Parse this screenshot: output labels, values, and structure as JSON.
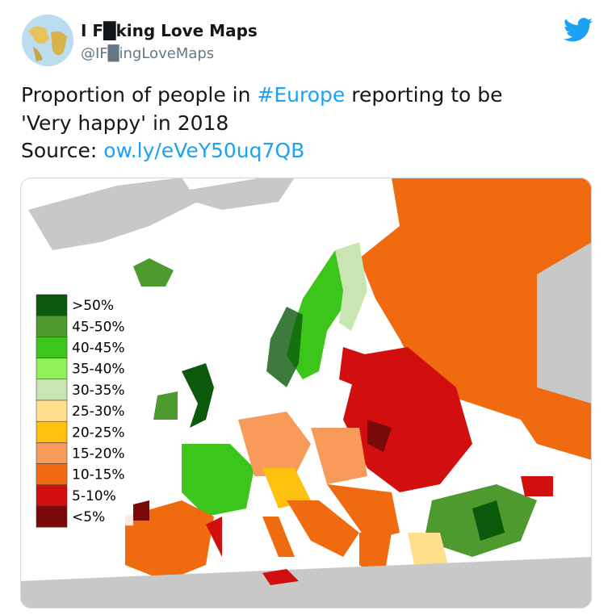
{
  "tweet": {
    "author_name": "I F█king Love Maps",
    "handle": "@IF█ingLoveMaps",
    "text_start": "Proportion of people in ",
    "hashtag": "#Europe",
    "text_end": " reporting to be",
    "text_line2": "'Very happy' in 2018",
    "source_label": "Source: ",
    "source_link": "ow.ly/eVeY50uq7QB"
  },
  "map": {
    "legend": [
      {
        "label": ">50%",
        "color": "#0b5a0b"
      },
      {
        "label": "45-50%",
        "color": "#4e9a2e"
      },
      {
        "label": "40-45%",
        "color": "#3cc51a"
      },
      {
        "label": "35-40%",
        "color": "#8ff05a"
      },
      {
        "label": "30-35%",
        "color": "#c9e6b2"
      },
      {
        "label": "25-30%",
        "color": "#ffdf8c"
      },
      {
        "label": "20-25%",
        "color": "#ffc10f"
      },
      {
        "label": "15-20%",
        "color": "#f79a5a"
      },
      {
        "label": "10-15%",
        "color": "#f06a10"
      },
      {
        "label": "5-10%",
        "color": "#d20f0f"
      },
      {
        "label": "<5%",
        "color": "#7a0a0a"
      }
    ]
  }
}
